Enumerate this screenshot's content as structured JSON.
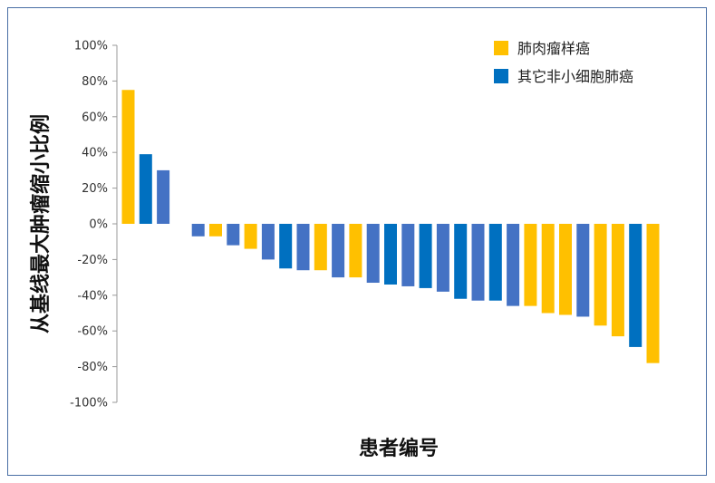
{
  "chart_data": {
    "type": "bar",
    "title": "",
    "xlabel": "患者编号",
    "ylabel": "从基线最大肿瘤缩小比例",
    "ylim": [
      -100,
      100
    ],
    "ytick_step": 20,
    "ytick_suffix": "%",
    "grid": false,
    "legend_position": "top-right",
    "series": [
      {
        "name": "肺肉瘤样癌",
        "color": "#FFC000"
      },
      {
        "name": "其它非小细胞肺癌",
        "color": "#0070C0"
      }
    ],
    "bars": [
      {
        "value": 75,
        "series": 0
      },
      {
        "value": 39,
        "series": 1
      },
      {
        "value": 30,
        "series": 1
      },
      {
        "value": null,
        "series": null
      },
      {
        "value": -7,
        "series": 1
      },
      {
        "value": -7,
        "series": 0
      },
      {
        "value": -12,
        "series": 1
      },
      {
        "value": -14,
        "series": 0
      },
      {
        "value": -20,
        "series": 1
      },
      {
        "value": -25,
        "series": 1
      },
      {
        "value": -26,
        "series": 1
      },
      {
        "value": -26,
        "series": 0
      },
      {
        "value": -30,
        "series": 1
      },
      {
        "value": -30,
        "series": 0
      },
      {
        "value": -33,
        "series": 1
      },
      {
        "value": -34,
        "series": 1
      },
      {
        "value": -35,
        "series": 1
      },
      {
        "value": -36,
        "series": 1
      },
      {
        "value": -38,
        "series": 1
      },
      {
        "value": -42,
        "series": 1
      },
      {
        "value": -43,
        "series": 1
      },
      {
        "value": -43,
        "series": 1
      },
      {
        "value": -46,
        "series": 1
      },
      {
        "value": -46,
        "series": 0
      },
      {
        "value": -50,
        "series": 0
      },
      {
        "value": -51,
        "series": 0
      },
      {
        "value": -52,
        "series": 1
      },
      {
        "value": -57,
        "series": 0
      },
      {
        "value": -63,
        "series": 0
      },
      {
        "value": -69,
        "series": 1
      },
      {
        "value": -78,
        "series": 0
      }
    ]
  }
}
